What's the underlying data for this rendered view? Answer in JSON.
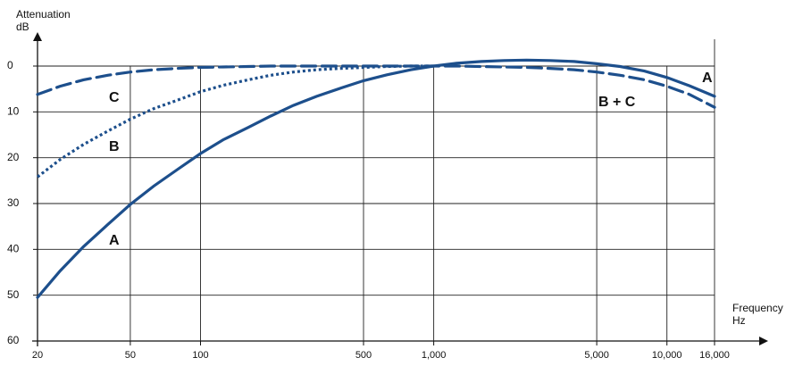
{
  "chart_data": {
    "type": "line",
    "y_label": "Attenuation",
    "y_unit": "dB",
    "x_label": "Frequency",
    "x_unit": "Hz",
    "log_x": true,
    "y_inverted": true,
    "grid": true,
    "xlim": [
      20,
      16000
    ],
    "ylim": [
      0,
      60
    ],
    "xticks": [
      20,
      50,
      100,
      500,
      {
        "value": 1000,
        "label": "1,000"
      },
      {
        "value": 5000,
        "label": "5,000"
      },
      {
        "value": 10000,
        "label": "10,000"
      },
      {
        "value": 16000,
        "label": "16,000"
      }
    ],
    "yticks": [
      0,
      10,
      20,
      30,
      40,
      50,
      60
    ],
    "x": [
      20,
      25,
      31.5,
      40,
      50,
      63,
      80,
      100,
      125,
      160,
      200,
      250,
      315,
      400,
      500,
      630,
      800,
      1000,
      1250,
      1600,
      2000,
      2500,
      3150,
      4000,
      5000,
      6300,
      8000,
      10000,
      12500,
      16000
    ],
    "series": [
      {
        "name": "A",
        "color": "#1d4f8c",
        "dash": "solid",
        "values": [
          50.5,
          44.7,
          39.4,
          34.6,
          30.2,
          26.2,
          22.5,
          19.1,
          16.1,
          13.4,
          10.9,
          8.6,
          6.6,
          4.8,
          3.2,
          1.9,
          0.8,
          0,
          -0.6,
          -1.0,
          -1.2,
          -1.3,
          -1.2,
          -1.0,
          -0.5,
          0.1,
          1.1,
          2.5,
          4.3,
          6.6
        ]
      },
      {
        "name": "B",
        "color": "#1d4f8c",
        "dash": "dotted",
        "values": [
          24.2,
          20.4,
          17.1,
          14.2,
          11.6,
          9.3,
          7.4,
          5.6,
          4.2,
          3.0,
          2.0,
          1.3,
          0.8,
          0.5,
          0.3,
          0.1,
          0,
          0,
          null,
          null,
          null,
          null,
          null,
          null,
          null,
          null,
          null,
          null,
          null,
          null
        ]
      },
      {
        "name": "C",
        "color": "#1d4f8c",
        "dash": "dashed",
        "values": [
          6.2,
          4.4,
          3.0,
          2.0,
          1.3,
          0.8,
          0.5,
          0.3,
          0.2,
          0.1,
          0,
          0,
          0,
          0,
          0,
          0,
          0,
          0,
          0,
          0.1,
          0.2,
          0.3,
          0.5,
          0.8,
          1.3,
          2.0,
          3.0,
          4.4,
          6.2,
          9.0
        ]
      }
    ],
    "annotations": [
      "A",
      "B",
      "C",
      "B + C",
      "A"
    ]
  }
}
